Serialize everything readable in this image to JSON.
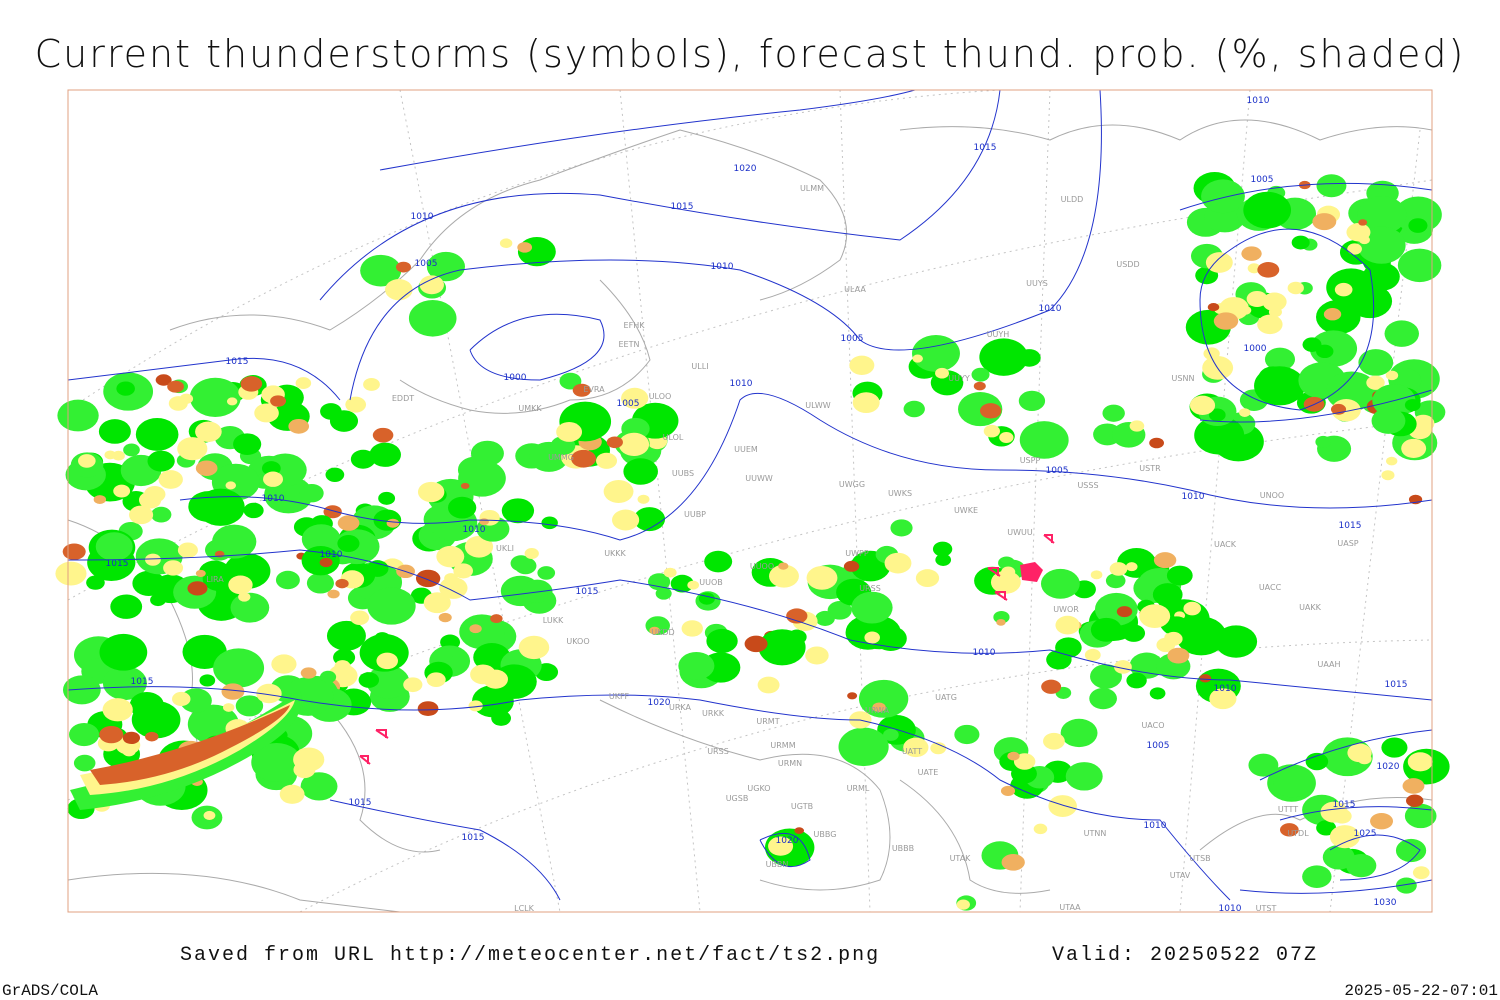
{
  "title": "Current thunderstorms (symbols), forecast thund. prob. (%, shaded)",
  "footer": {
    "source": "Saved from URL http://meteocenter.net/fact/ts2.png",
    "valid": "Valid: 20250522 07Z",
    "software": "GrADS/COLA",
    "timestamp": "2025-05-22-07:01"
  },
  "isobar_labels": [
    "1010",
    "1015",
    "1020",
    "1015",
    "1010",
    "1005",
    "1005",
    "1010",
    "1010",
    "1005",
    "1000",
    "1015",
    "1000",
    "1010",
    "1005",
    "1005",
    "1010",
    "1010",
    "1010",
    "1010",
    "1015",
    "1015",
    "1015",
    "1010",
    "1015",
    "1020",
    "1010",
    "1015",
    "1005",
    "1020",
    "1015",
    "1015",
    "1015",
    "1010",
    "1020",
    "1025",
    "1010",
    "1030"
  ],
  "stations": [
    "ULMM",
    "ULDD",
    "UUYS",
    "USDD",
    "ULAA",
    "EFHK",
    "UUYH",
    "EETN",
    "ULLI",
    "USNN",
    "UUYY",
    "ULOO",
    "EVRA",
    "ULWW",
    "UMKK",
    "EDDT",
    "UMMG",
    "UUEM",
    "ULOL",
    "UUWW",
    "UWGG",
    "UUBS",
    "USPP",
    "USSS",
    "USTR",
    "UNOO",
    "UWKS",
    "UUBP",
    "UWKE",
    "UWUU",
    "UACK",
    "UASP",
    "UWPP",
    "LIRA",
    "UUOO",
    "UACC",
    "UKKK",
    "UKLI",
    "UUOB",
    "URSS",
    "UWOR",
    "UAKK",
    "UKDD",
    "LUKK",
    "UKOO",
    "UKFF",
    "URKA",
    "URKK",
    "URMT",
    "UATG",
    "URWA",
    "UAAH",
    "UACO",
    "URSS",
    "URMM",
    "URMN",
    "UATT",
    "UATE",
    "UGKO",
    "UGSB",
    "UGTB",
    "URML",
    "UTTT",
    "UTDL",
    "UTNN",
    "UBBG",
    "UBBB",
    "UTAK",
    "UTSB",
    "UBBN",
    "UTAV",
    "UTST",
    "UTAA",
    "LCLK"
  ]
}
